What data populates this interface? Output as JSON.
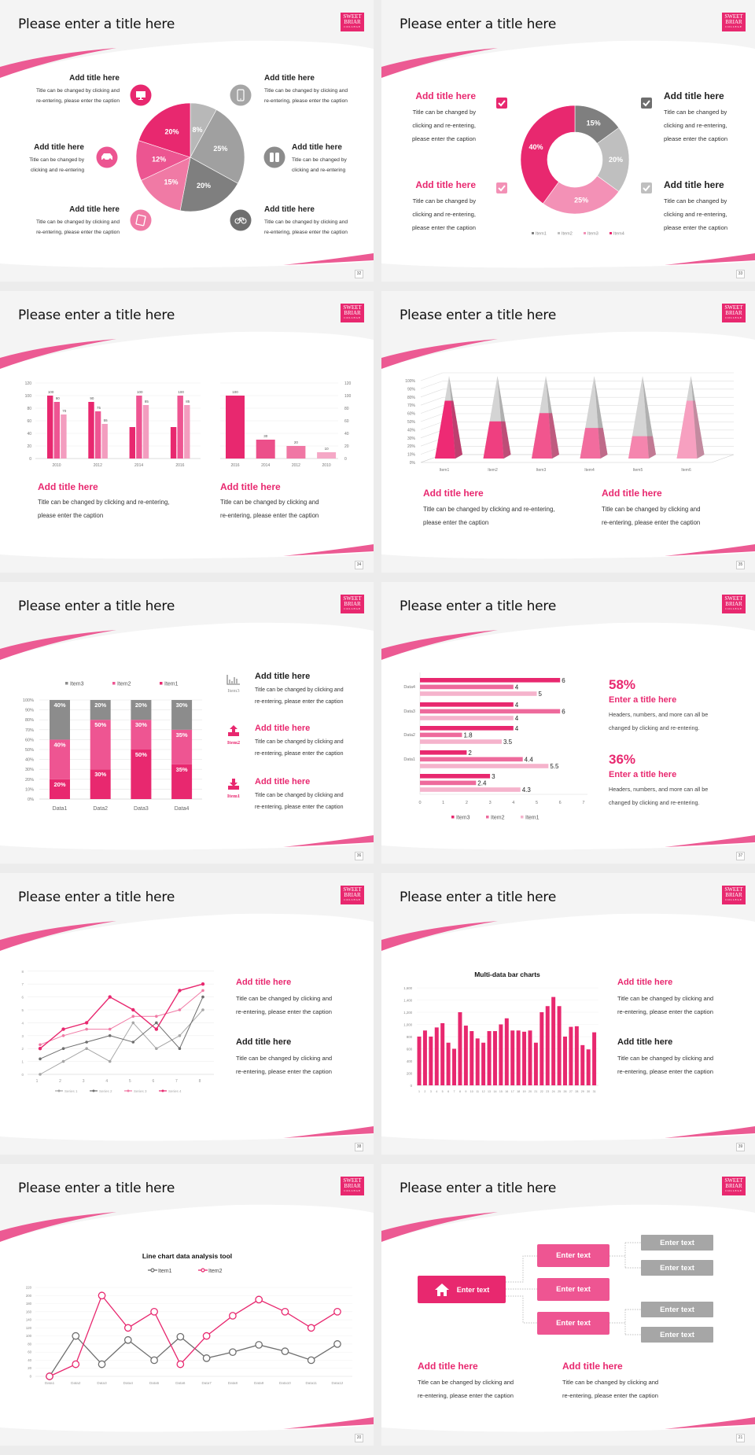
{
  "logo": {
    "lines": [
      "SWEET",
      "BRIAR",
      "COLLEGE"
    ]
  },
  "colors": {
    "deep_pink": "#e8286f",
    "mid_pink": "#ee5592",
    "light_pink": "#f39dbf",
    "dark_gray": "#7f7f7f",
    "gray": "#a6a6a6",
    "light_gray": "#c0c0c0"
  },
  "slides": [
    {
      "title": "Please enter a title here",
      "page": "32",
      "blocks": [
        {
          "title": "Add title here",
          "caption": [
            "Title can be changed by clicking and",
            "re-entering, please enter the caption"
          ],
          "icon": "monitor-icon",
          "icon_color": "#e8286f"
        },
        {
          "title": "Add title here",
          "caption": [
            "Title can be changed by",
            "clicking and re-entering"
          ],
          "icon": "car-icon",
          "icon_color": "#ec5591"
        },
        {
          "title": "Add title here",
          "caption": [
            "Title can be changed by clicking and",
            "re-entering, please enter the caption"
          ],
          "icon": "book-icon",
          "icon_color": "#f07aa5"
        },
        {
          "title": "Add title here",
          "caption": [
            "Title can be changed by clicking and",
            "re-entering, please enter the caption"
          ],
          "icon": "phone-icon",
          "icon_color": "#a6a6a6"
        },
        {
          "title": "Add title here",
          "caption": [
            "Title can be changed by",
            "clicking and re-entering"
          ],
          "icon": "binoculars-icon",
          "icon_color": "#8c8c8c"
        },
        {
          "title": "Add title here",
          "caption": [
            "Title can be changed by clicking and",
            "re-entering, please enter the caption"
          ],
          "icon": "bicycle-icon",
          "icon_color": "#6e6e6e"
        }
      ]
    },
    {
      "title": "Please enter a title here",
      "page": "33",
      "blocks": [
        {
          "title": "Add title here",
          "caption": [
            "Title can be changed by",
            "clicking and re-entering,",
            "please enter the caption"
          ],
          "title_color": "#e8286f",
          "check_color": "#e8286f"
        },
        {
          "title": "Add title here",
          "caption": [
            "Title can be changed by",
            "clicking and re-entering,",
            "please enter the caption"
          ],
          "title_color": "#e8286f",
          "check_color": "#f391b6"
        },
        {
          "title": "Add title here",
          "caption": [
            "Title can be changed by",
            "clicking and re-entering,",
            "please enter the caption"
          ],
          "title_color": "#222222",
          "check_color": "#6e6e6e"
        },
        {
          "title": "Add title here",
          "caption": [
            "Title can be changed by",
            "clicking and re-entering,",
            "please enter the caption"
          ],
          "title_color": "#222222",
          "check_color": "#bfbfbf"
        }
      ]
    },
    {
      "title": "Please enter a title here",
      "page": "34",
      "blocks": [
        {
          "title": "Add title here",
          "caption": [
            "Title can be changed by clicking and re-entering,",
            "please enter the caption"
          ]
        },
        {
          "title": "Add title here",
          "caption": [
            "Title can be changed by clicking and",
            "re-entering, please enter the caption"
          ]
        }
      ]
    },
    {
      "title": "Please enter a title here",
      "page": "35",
      "blocks": [
        {
          "title": "Add title here",
          "caption": [
            "Title can be changed by clicking and re-entering,",
            "please enter the caption"
          ]
        },
        {
          "title": "Add title here",
          "caption": [
            "Title can be changed by clicking and",
            "re-entering, please enter the caption"
          ]
        }
      ]
    },
    {
      "title": "Please enter a title here",
      "page": "36",
      "blocks": [
        {
          "title": "Add title here",
          "caption": [
            "Title can be changed by clicking and",
            "re-entering, please enter the caption"
          ],
          "icon": "bar-chart-icon",
          "icon_label": "Item3",
          "color": "#222222",
          "icon_color": "#8c8c8c"
        },
        {
          "title": "Add title here",
          "caption": [
            "Title can be changed by clicking and",
            "re-entering, please enter the caption"
          ],
          "icon": "upload-icon",
          "icon_label": "Item2",
          "color": "#e8286f",
          "icon_color": "#e8286f"
        },
        {
          "title": "Add title here",
          "caption": [
            "Title can be changed by clicking and",
            "re-entering, please enter the caption"
          ],
          "icon": "download-icon",
          "icon_label": "Item1",
          "color": "#e8286f",
          "icon_color": "#e8286f"
        }
      ]
    },
    {
      "title": "Please enter a title here",
      "page": "37",
      "stats": [
        {
          "value": "58%",
          "title": "Enter a title here",
          "caption": [
            "Headers, numbers, and more can all be",
            "changed by clicking and re-entering."
          ]
        },
        {
          "value": "36%",
          "title": "Enter a title here",
          "caption": [
            "Headers, numbers, and more can all be",
            "changed by clicking and re-entering."
          ]
        }
      ]
    },
    {
      "title": "Please enter a title here",
      "page": "38",
      "blocks": [
        {
          "title": "Add title here",
          "caption": [
            "Title can be changed by clicking and",
            "re-entering, please enter the caption"
          ],
          "color": "#e8286f"
        },
        {
          "title": "Add title here",
          "caption": [
            "Title can be changed by clicking and",
            "re-entering, please enter the caption"
          ],
          "color": "#222222"
        }
      ]
    },
    {
      "title": "Please enter a title here",
      "page": "39",
      "blocks": [
        {
          "title": "Add title here",
          "caption": [
            "Title can be changed by clicking and",
            "re-entering, please enter the caption"
          ],
          "color": "#e8286f"
        },
        {
          "title": "Add title here",
          "caption": [
            "Title can be changed by clicking and",
            "re-entering, please enter the caption"
          ],
          "color": "#222222"
        }
      ]
    },
    {
      "title": "Please enter a title here",
      "page": "20"
    },
    {
      "title": "Please enter a title here",
      "page": "21",
      "tree": {
        "root": "Enter text",
        "root_icon": "home-icon",
        "middle": [
          "Enter text",
          "Enter text",
          "Enter text"
        ],
        "leaves": [
          "Enter text",
          "Enter text",
          "Enter text",
          "Enter text"
        ]
      },
      "blocks": [
        {
          "title": "Add title here",
          "caption": [
            "Title can be changed by clicking and",
            "re-entering, please enter the caption"
          ]
        },
        {
          "title": "Add title here",
          "caption": [
            "Title can be changed by clicking and",
            "re-entering, please enter the caption"
          ]
        }
      ]
    }
  ],
  "chart_data": [
    {
      "type": "pie",
      "values": [
        8,
        25,
        20,
        15,
        12,
        20
      ],
      "labels": [
        "8%",
        "25%",
        "20%",
        "15%",
        "12%",
        "20%"
      ],
      "colors": [
        "#b8b8b8",
        "#a0a0a0",
        "#7f7f7f",
        "#f07aa5",
        "#ec5591",
        "#e8286f"
      ]
    },
    {
      "type": "pie",
      "donut": true,
      "categories": [
        "Item1",
        "Item2",
        "Item3",
        "Item4"
      ],
      "values": [
        15,
        20,
        25,
        40
      ],
      "labels": [
        "15%",
        "20%",
        "25%",
        "40%"
      ],
      "colors": [
        "#7f7f7f",
        "#bfbfbf",
        "#f391b6",
        "#e8286f"
      ],
      "legend": "bottom"
    },
    {
      "type": "bar",
      "categories": [
        "2010",
        "2012",
        "2014",
        "2016"
      ],
      "series": [
        {
          "values": [
            100,
            90,
            50,
            50
          ],
          "color": "#e8286f"
        },
        {
          "values": [
            90,
            75,
            100,
            100
          ],
          "color": "#ee5592"
        },
        {
          "values": [
            70,
            55,
            85,
            85
          ],
          "color": "#f39dbf"
        }
      ],
      "data_labels": [
        [
          "100",
          "90",
          "",
          ""
        ],
        [
          "90",
          "75",
          "100",
          "100"
        ],
        [
          "70",
          "55",
          "85",
          "85"
        ]
      ],
      "ylim": [
        0,
        120
      ],
      "yticks": [
        "0",
        "20",
        "40",
        "60",
        "80",
        "100",
        "120"
      ],
      "grid": true
    },
    {
      "type": "bar",
      "categories": [
        "2016",
        "2014",
        "2012",
        "2010"
      ],
      "values": [
        100,
        30,
        20,
        10
      ],
      "data_labels": [
        "100",
        "30",
        "20",
        "10"
      ],
      "colors": [
        "#e8286f",
        "#ec4f8a",
        "#f077a4",
        "#f5a8c6"
      ],
      "ylim": [
        0,
        120
      ],
      "yticks": [
        "0",
        "20",
        "40",
        "60",
        "80",
        "100",
        "120"
      ],
      "y_axis": "right",
      "grid": true
    },
    {
      "type": "bar",
      "style": "3d-pyramid",
      "categories": [
        "Item1",
        "Item2",
        "Item3",
        "Item4",
        "Item5",
        "Item6"
      ],
      "values": [
        70,
        45,
        55,
        37,
        27,
        70
      ],
      "colors": [
        "#ee2a74",
        "#ef3f80",
        "#f1558e",
        "#f26c9e",
        "#f585ae",
        "#f7a0c0"
      ],
      "ylim": [
        0,
        100
      ],
      "yticks": [
        "0%",
        "10%",
        "20%",
        "30%",
        "40%",
        "50%",
        "60%",
        "70%",
        "80%",
        "90%",
        "100%"
      ],
      "grid": true
    },
    {
      "type": "bar",
      "stacked": true,
      "categories": [
        "Data1",
        "Data2",
        "Data3",
        "Data4"
      ],
      "series": [
        {
          "name": "Item1",
          "values": [
            20,
            30,
            50,
            35
          ],
          "labels": [
            "20%",
            "30%",
            "50%",
            "35%"
          ],
          "color": "#e8286f"
        },
        {
          "name": "Item2",
          "values": [
            40,
            50,
            30,
            35
          ],
          "labels": [
            "40%",
            "50%",
            "30%",
            "35%"
          ],
          "color": "#ee5592"
        },
        {
          "name": "Item3",
          "values": [
            40,
            20,
            20,
            30
          ],
          "labels": [
            "40%",
            "20%",
            "20%",
            "30%"
          ],
          "color": "#8c8c8c"
        }
      ],
      "legend_order": [
        "Item3",
        "Item2",
        "Item1"
      ],
      "legend": "top",
      "ylim": [
        0,
        100
      ],
      "yticks": [
        "0%",
        "10%",
        "20%",
        "30%",
        "40%",
        "50%",
        "60%",
        "70%",
        "80%",
        "90%",
        "100%"
      ],
      "grid": true
    },
    {
      "type": "bar",
      "orientation": "horizontal",
      "groups": [
        {
          "label": "Data4",
          "values": [
            6,
            4,
            5
          ],
          "labels": [
            "6",
            "4",
            "5"
          ]
        },
        {
          "label": "Data3",
          "values": [
            4,
            6,
            4
          ],
          "labels": [
            "4",
            "6",
            "4"
          ]
        },
        {
          "label": "Data2",
          "values": [
            4,
            1.8,
            3.5
          ],
          "labels": [
            "4",
            "1.8",
            "3.5"
          ]
        },
        {
          "label": "Data1",
          "values": [
            2,
            4.4,
            5.5
          ],
          "labels": [
            "2",
            "4.4",
            "5.5"
          ]
        },
        {
          "values": [
            3,
            2.4,
            4.3
          ],
          "labels": [
            "3",
            "2.4",
            "4.3"
          ]
        }
      ],
      "series": [
        {
          "name": "Item3",
          "color": "#e8286f"
        },
        {
          "name": "Item2",
          "color": "#ee6a9c"
        },
        {
          "name": "Item1",
          "color": "#f5b3cc"
        }
      ],
      "xlim": [
        0,
        7
      ],
      "xticks": [
        "0",
        "1",
        "2",
        "3",
        "4",
        "5",
        "6",
        "7"
      ],
      "legend": "bottom"
    },
    {
      "type": "line",
      "x": [
        "1",
        "2",
        "3",
        "4",
        "5",
        "6",
        "7",
        "8"
      ],
      "series": [
        {
          "name": "Series 1",
          "values": [
            0,
            1,
            2,
            1,
            4,
            2,
            3,
            5
          ],
          "color": "#a6a6a6"
        },
        {
          "name": "Series 2",
          "values": [
            1.2,
            2,
            2.5,
            3,
            2.5,
            4,
            2,
            6
          ],
          "color": "#6e6e6e"
        },
        {
          "name": "Series 3",
          "values": [
            2.3,
            3,
            3.5,
            3.5,
            4.5,
            4.5,
            5,
            6.5
          ],
          "color": "#f07aa5"
        },
        {
          "name": "Series 4",
          "values": [
            2,
            3.5,
            4,
            6,
            5,
            3.5,
            6.5,
            7
          ],
          "color": "#e8286f"
        }
      ],
      "ylim": [
        0,
        8
      ],
      "yticks": [
        "0",
        "1",
        "2",
        "3",
        "4",
        "5",
        "6",
        "7",
        "8"
      ],
      "legend": "bottom",
      "grid": true
    },
    {
      "type": "bar",
      "title": "Multi-data bar charts",
      "categories": [
        "1",
        "2",
        "3",
        "4",
        "5",
        "6",
        "7",
        "8",
        "9",
        "10",
        "11",
        "12",
        "13",
        "14",
        "15",
        "16",
        "17",
        "18",
        "19",
        "20",
        "21",
        "22",
        "23",
        "24",
        "25",
        "26",
        "27",
        "28",
        "29",
        "30",
        "31"
      ],
      "values": [
        800,
        900,
        800,
        950,
        1020,
        700,
        600,
        1200,
        980,
        890,
        770,
        700,
        890,
        890,
        1000,
        1100,
        900,
        900,
        880,
        900,
        700,
        1200,
        1300,
        1450,
        1300,
        800,
        960,
        970,
        660,
        590,
        870
      ],
      "color": "#e8286f",
      "ylim": [
        0,
        1600
      ],
      "yticks": [
        "0",
        "200",
        "400",
        "600",
        "800",
        "1,000",
        "1,200",
        "1,400",
        "1,600"
      ],
      "grid": true
    },
    {
      "type": "line",
      "title": "Line chart data analysis tool",
      "categories": [
        "Data1",
        "Data2",
        "Data3",
        "Data4",
        "Data5",
        "Data6",
        "Data7",
        "Data8",
        "Data9",
        "Data10",
        "Data11",
        "Data12"
      ],
      "series": [
        {
          "name": "Item1",
          "values": [
            0,
            100,
            30,
            90,
            40,
            98,
            45,
            60,
            78,
            62,
            40,
            80
          ],
          "color": "#6e6e6e"
        },
        {
          "name": "Item2",
          "values": [
            0,
            30,
            200,
            120,
            160,
            30,
            100,
            150,
            190,
            160,
            120,
            160
          ],
          "color": "#e8286f"
        }
      ],
      "ylim": [
        0,
        220
      ],
      "yticks": [
        "0",
        "20",
        "40",
        "60",
        "80",
        "100",
        "120",
        "140",
        "160",
        "180",
        "200",
        "220"
      ],
      "legend": "top",
      "grid": true
    }
  ]
}
